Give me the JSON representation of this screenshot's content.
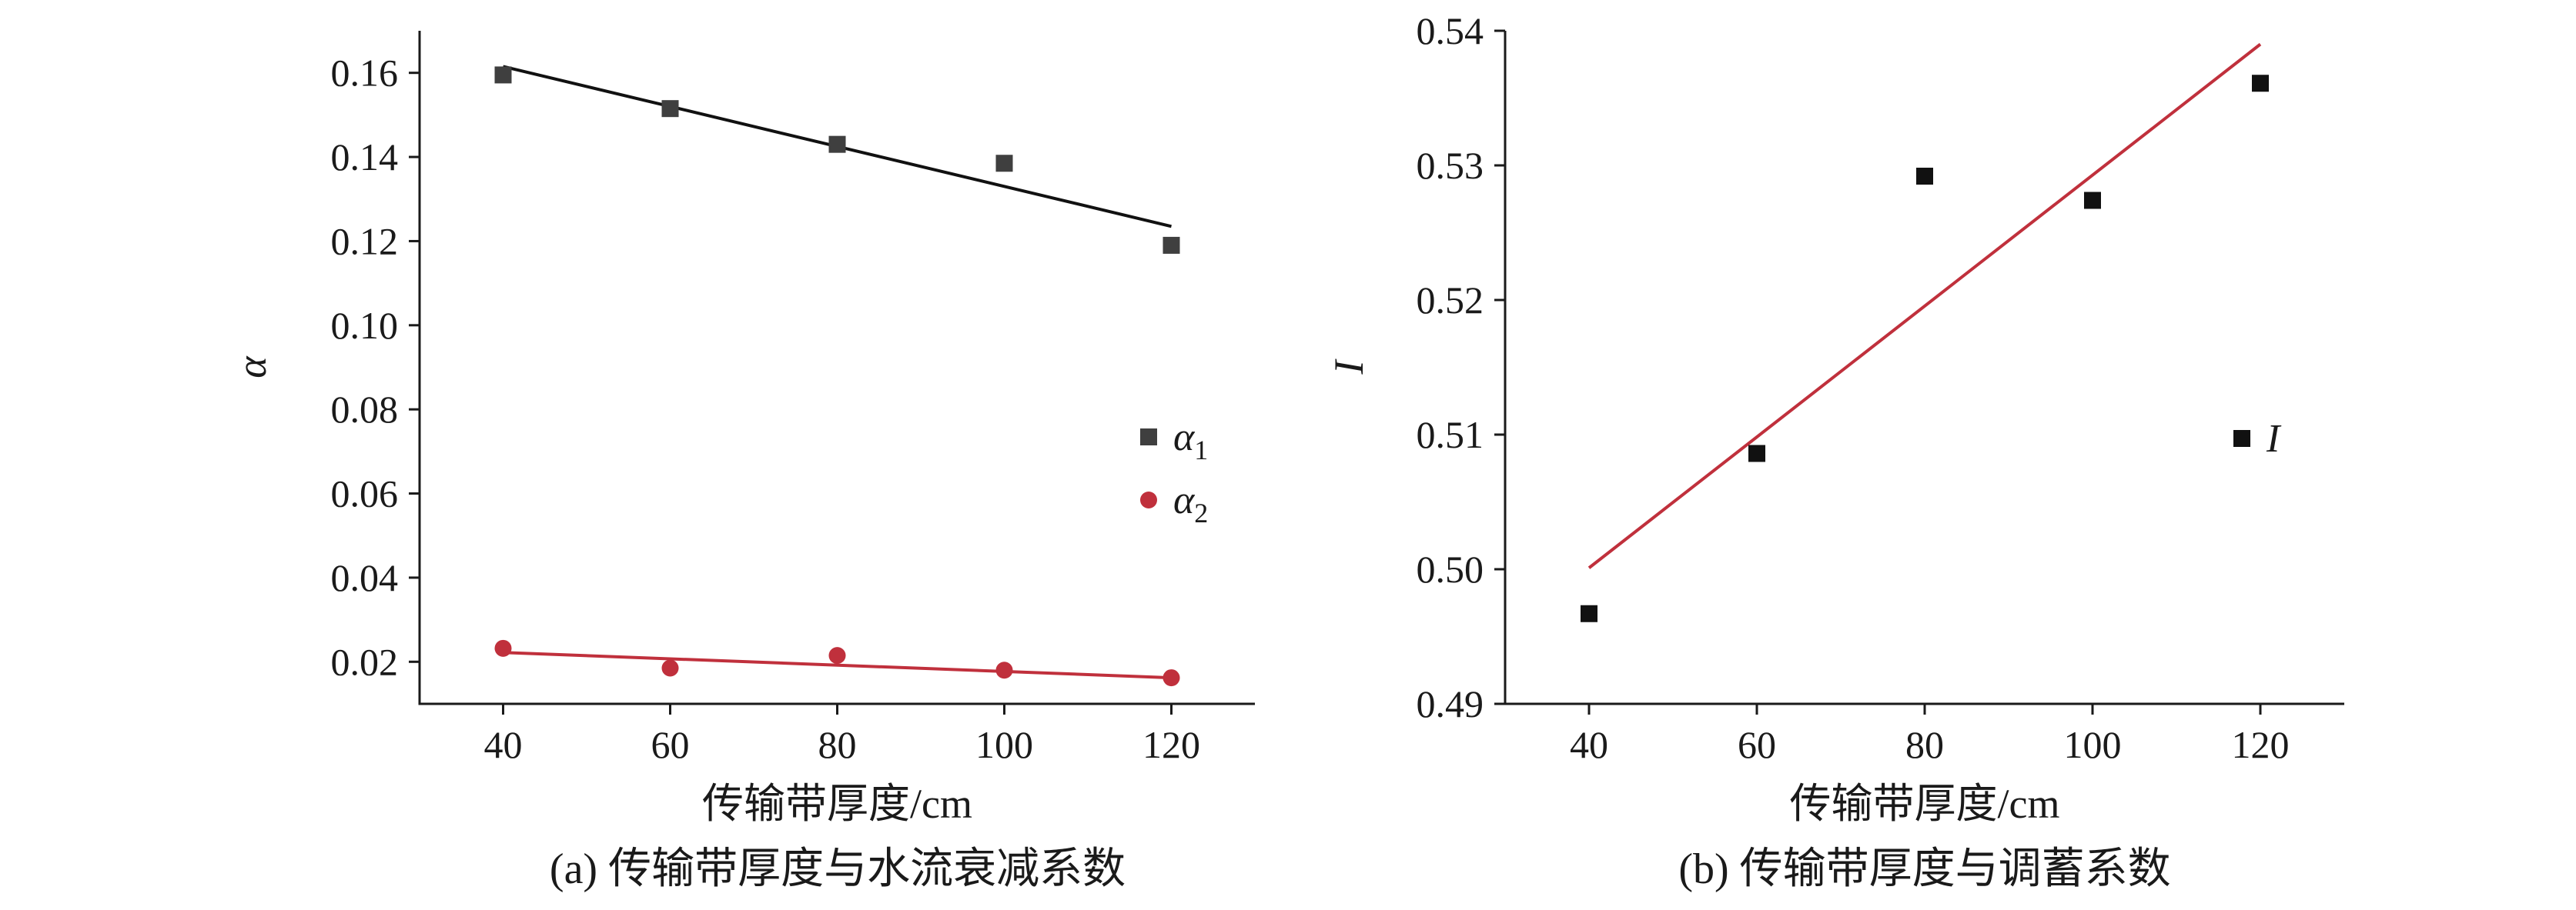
{
  "chart_data": [
    {
      "type": "scatter",
      "caption": "(a) 传输带厚度与水流衰减系数",
      "xlabel": "传输带厚度/cm",
      "ylabel": "α",
      "xlim": [
        30,
        130
      ],
      "ylim": [
        0.01,
        0.17
      ],
      "xticks": [
        40,
        60,
        80,
        100,
        120
      ],
      "yticks": [
        "0.02",
        "0.04",
        "0.06",
        "0.08",
        "0.10",
        "0.12",
        "0.14",
        "0.16"
      ],
      "grid": false,
      "legend_position": "right-middle",
      "series": [
        {
          "name": "α",
          "name_sub": "1",
          "marker": "square",
          "color": "#3f3f3f",
          "fit_color": "#111111",
          "x": [
            40,
            60,
            80,
            100,
            120
          ],
          "y": [
            0.1595,
            0.1515,
            0.143,
            0.1385,
            0.119
          ],
          "fit": [
            [
              40,
              0.1615
            ],
            [
              120,
              0.1235
            ]
          ]
        },
        {
          "name": "α",
          "name_sub": "2",
          "marker": "circle",
          "color": "#c0303c",
          "fit_color": "#c0303c",
          "x": [
            40,
            60,
            80,
            100,
            120
          ],
          "y": [
            0.0232,
            0.0185,
            0.0215,
            0.018,
            0.0162
          ],
          "fit": [
            [
              40,
              0.0222
            ],
            [
              120,
              0.0162
            ]
          ]
        }
      ]
    },
    {
      "type": "scatter",
      "caption": "(b) 传输带厚度与调蓄系数",
      "xlabel": "传输带厚度/cm",
      "ylabel": "I",
      "xlim": [
        30,
        130
      ],
      "ylim": [
        0.49,
        0.54
      ],
      "xticks": [
        40,
        60,
        80,
        100,
        120
      ],
      "yticks": [
        "0.49",
        "0.50",
        "0.51",
        "0.52",
        "0.53",
        "0.54"
      ],
      "grid": false,
      "legend_position": "right-middle",
      "series": [
        {
          "name": "I",
          "name_sub": "",
          "marker": "square",
          "color": "#111111",
          "fit_color": "#c0303c",
          "x": [
            40,
            60,
            80,
            100,
            120
          ],
          "y": [
            0.4967,
            0.5086,
            0.5292,
            0.5274,
            0.5361
          ],
          "fit": [
            [
              40,
              0.5001
            ],
            [
              120,
              0.539
            ]
          ]
        }
      ]
    }
  ]
}
